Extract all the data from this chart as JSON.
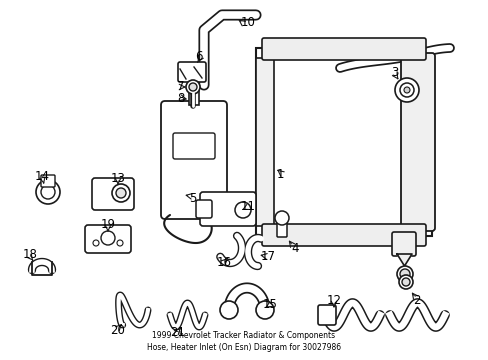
{
  "title": "1999 Chevrolet Tracker Radiator & Components\nHose, Heater Inlet (On Esn) Diagram for 30027986",
  "bg_color": "#ffffff",
  "line_color": "#1a1a1a",
  "text_color": "#000000",
  "fig_width": 4.89,
  "fig_height": 3.6,
  "dpi": 100
}
